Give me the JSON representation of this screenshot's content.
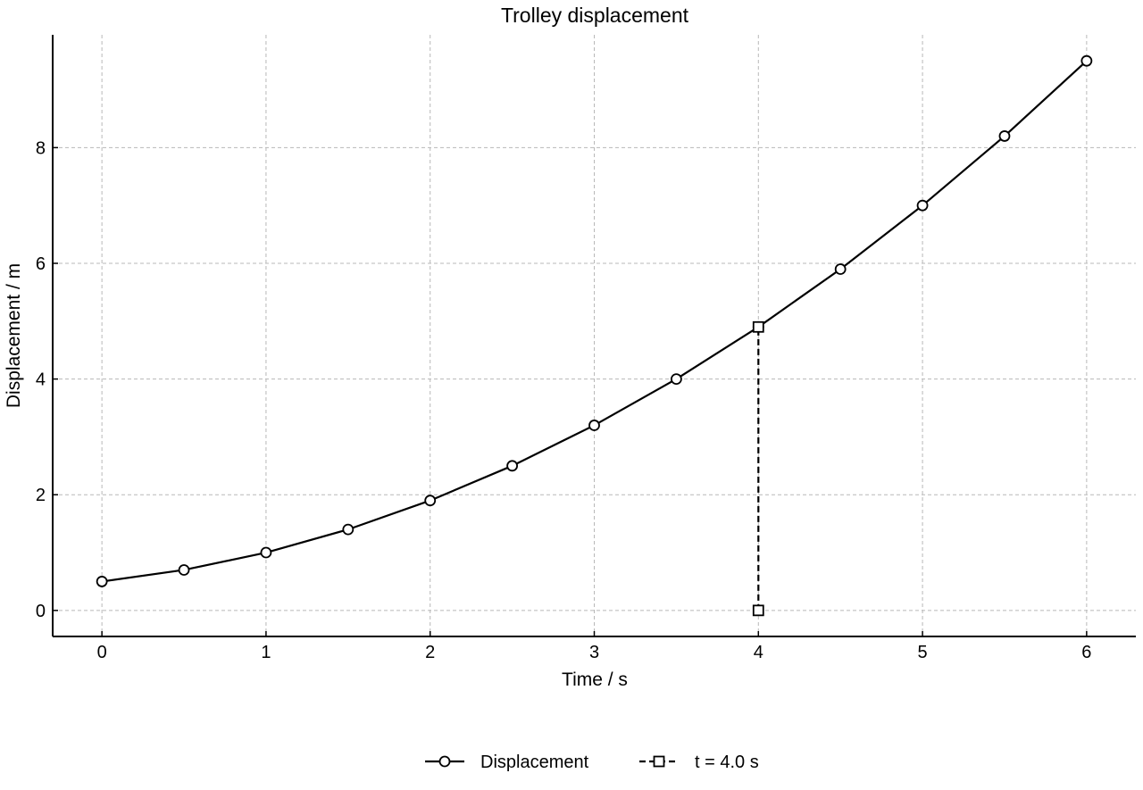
{
  "chart_data": {
    "type": "line",
    "title": "Trolley displacement",
    "xlabel": "Time / s",
    "ylabel": "Displacement / m",
    "xlim": [
      -0.3,
      6.3
    ],
    "ylim": [
      -0.45,
      9.95
    ],
    "xticks": [
      0,
      1,
      2,
      3,
      4,
      5,
      6
    ],
    "yticks": [
      0,
      2,
      4,
      6,
      8
    ],
    "grid": true,
    "legend_position": "bottom-center",
    "series": [
      {
        "name": "Displacement",
        "style": "solid",
        "marker": "circle",
        "color": "#000000",
        "x": [
          0,
          0.5,
          1,
          1.5,
          2,
          2.5,
          3,
          3.5,
          4,
          4.5,
          5,
          5.5,
          6
        ],
        "y": [
          0.5,
          0.7,
          1.0,
          1.4,
          1.9,
          2.5,
          3.2,
          4.0,
          4.9,
          5.9,
          7.0,
          8.2,
          9.5
        ]
      },
      {
        "name": "t = 4.0 s",
        "style": "dashed",
        "marker": "square",
        "color": "#000000",
        "x": [
          4,
          4
        ],
        "y": [
          0,
          4.9
        ]
      }
    ]
  }
}
